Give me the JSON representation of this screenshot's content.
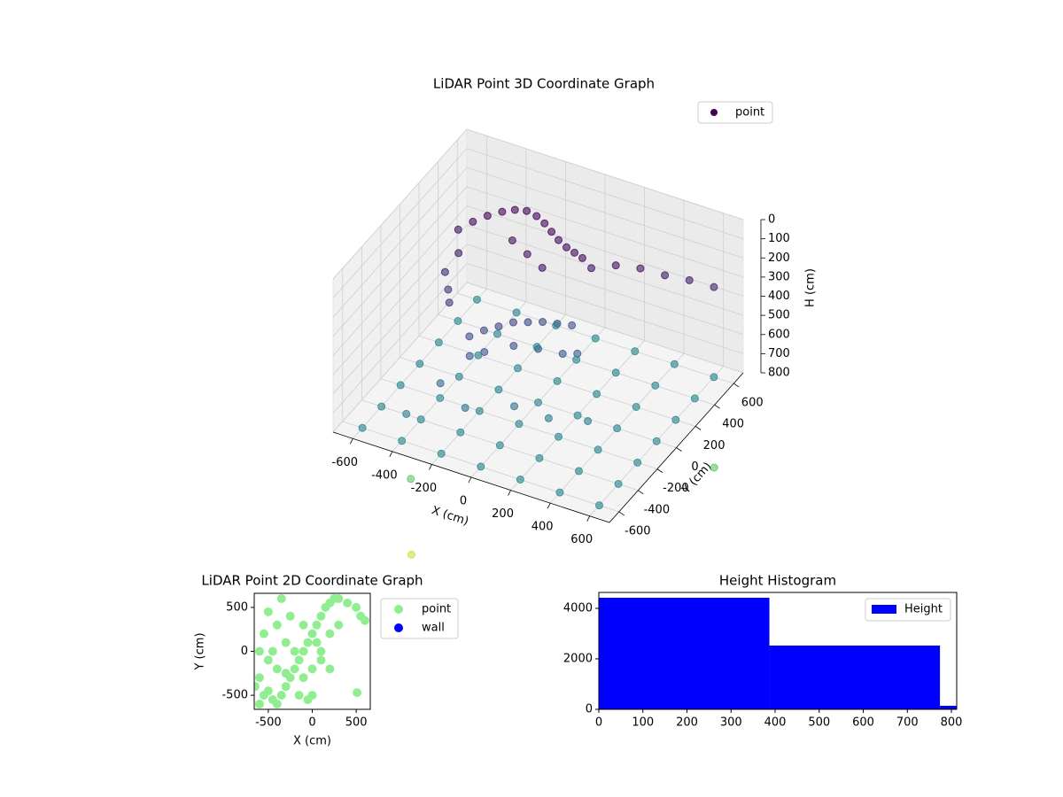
{
  "chart_data": [
    {
      "type": "scatter3d",
      "title": "LiDAR Point 3D Coordinate Graph",
      "xlabel": "X (cm)",
      "ylabel": "Y (cm)",
      "zlabel": "H (cm)",
      "xlim": [
        -700,
        700
      ],
      "ylim": [
        -700,
        700
      ],
      "zlim": [
        800,
        0
      ],
      "xticks": [
        -600,
        -400,
        -200,
        0,
        200,
        400,
        600
      ],
      "yticks": [
        -600,
        -400,
        -200,
        0,
        200,
        400,
        600
      ],
      "zticks": [
        0,
        100,
        200,
        300,
        400,
        500,
        600,
        700,
        800
      ],
      "grid": true,
      "legend": "upper right",
      "series": [
        {
          "name": "point",
          "colormap": "viridis",
          "x": [
            -550,
            -500,
            -450,
            -400,
            -350,
            -300,
            -250,
            -200,
            -150,
            -100,
            -50,
            0,
            50,
            -500,
            -520,
            -480,
            -450,
            -300,
            -200,
            -100,
            100,
            200,
            300,
            400,
            500,
            600,
            -300,
            -250,
            -200,
            -150,
            -100,
            -50,
            0,
            50,
            -250,
            -200,
            -100,
            0,
            100,
            150,
            -350,
            -200,
            0,
            150,
            300,
            -450,
            -600,
            -400,
            -200,
            0,
            200,
            400,
            600,
            -600,
            -400,
            -200,
            0,
            200,
            400,
            600,
            -600,
            -400,
            -200,
            0,
            200,
            400,
            600,
            -600,
            -400,
            -200,
            0,
            200,
            400,
            600,
            -600,
            -400,
            -200,
            0,
            200,
            400,
            600,
            -600,
            -400,
            -200,
            0,
            200,
            400,
            600,
            -600,
            -400,
            -200,
            0,
            200,
            400,
            600,
            400,
            200,
            -400,
            650,
            -500
          ],
          "y": [
            300,
            350,
            400,
            450,
            480,
            500,
            500,
            480,
            450,
            420,
            400,
            380,
            360,
            200,
            100,
            50,
            0,
            350,
            300,
            250,
            350,
            400,
            450,
            500,
            550,
            600,
            -100,
            -50,
            0,
            50,
            100,
            150,
            200,
            250,
            -200,
            -150,
            -50,
            0,
            50,
            100,
            -300,
            -350,
            -250,
            -200,
            -100,
            -450,
            -600,
            -600,
            -600,
            -600,
            -600,
            -600,
            -600,
            -400,
            -400,
            -400,
            -400,
            -400,
            -400,
            -400,
            -200,
            -200,
            -200,
            -200,
            -200,
            -200,
            -200,
            0,
            0,
            0,
            0,
            0,
            0,
            0,
            200,
            200,
            200,
            200,
            200,
            200,
            200,
            400,
            400,
            400,
            400,
            400,
            400,
            400,
            600,
            600,
            600,
            600,
            600,
            600,
            600,
            -600,
            -700,
            -500,
            500,
            -300
          ],
          "z": [
            250,
            220,
            200,
            190,
            180,
            180,
            190,
            200,
            210,
            220,
            230,
            230,
            230,
            300,
            350,
            400,
            430,
            250,
            260,
            270,
            260,
            240,
            250,
            280,
            300,
            330,
            500,
            480,
            470,
            460,
            470,
            480,
            500,
            520,
            530,
            520,
            510,
            520,
            540,
            550,
            650,
            700,
            680,
            720,
            740,
            760,
            800,
            800,
            800,
            800,
            800,
            800,
            800,
            800,
            800,
            800,
            800,
            800,
            800,
            800,
            800,
            800,
            800,
            800,
            800,
            800,
            800,
            800,
            800,
            800,
            800,
            800,
            800,
            800,
            800,
            800,
            800,
            800,
            800,
            800,
            800,
            800,
            800,
            800,
            800,
            800,
            800,
            800,
            800,
            800,
            800,
            800,
            800,
            800,
            800,
            1550,
            1500,
            1450,
            1200,
            1200
          ]
        }
      ]
    },
    {
      "type": "scatter",
      "title": "LiDAR Point 2D Coordinate Graph",
      "xlabel": "X (cm)",
      "ylabel": "Y (cm)",
      "xlim": [
        -660,
        660
      ],
      "ylim": [
        -660,
        660
      ],
      "xticks": [
        -500,
        0,
        500
      ],
      "yticks": [
        -500,
        0,
        500
      ],
      "legend": "outside right",
      "series": [
        {
          "name": "point",
          "color": "#90ee90",
          "x": [
            -600,
            -550,
            -500,
            -450,
            -400,
            -350,
            -300,
            -250,
            -200,
            -150,
            -100,
            -50,
            0,
            50,
            100,
            150,
            200,
            250,
            300,
            400,
            500,
            550,
            600,
            -600,
            -600,
            -550,
            -500,
            -400,
            -300,
            -200,
            -400,
            -300,
            -100,
            0,
            100,
            200,
            300,
            100,
            -500,
            -150,
            -50,
            0,
            200,
            -250,
            -350,
            510,
            -650,
            -450,
            -100,
            50
          ],
          "y": [
            -600,
            -500,
            -450,
            -550,
            -600,
            -500,
            -400,
            -300,
            -200,
            -100,
            0,
            100,
            200,
            300,
            400,
            500,
            550,
            600,
            600,
            550,
            500,
            400,
            350,
            -300,
            0,
            200,
            450,
            300,
            100,
            0,
            -200,
            -250,
            -300,
            -200,
            0,
            200,
            300,
            -100,
            -100,
            -500,
            -550,
            -500,
            -200,
            400,
            600,
            -470,
            -400,
            0,
            300,
            100
          ]
        },
        {
          "name": "wall",
          "color": "#0000ff",
          "x": [],
          "y": []
        }
      ]
    },
    {
      "type": "histogram",
      "title": "Height Histogram",
      "name": "Height",
      "color": "#0000ff",
      "bins": [
        0,
        387,
        774,
        1161
      ],
      "counts": [
        4420,
        2526,
        140
      ],
      "xlim": [
        0,
        812
      ],
      "ylim": [
        0,
        4630
      ],
      "xticks": [
        0,
        100,
        200,
        300,
        400,
        500,
        600,
        700,
        800
      ],
      "yticks": [
        0,
        2000,
        4000
      ],
      "legend": "upper right"
    }
  ]
}
